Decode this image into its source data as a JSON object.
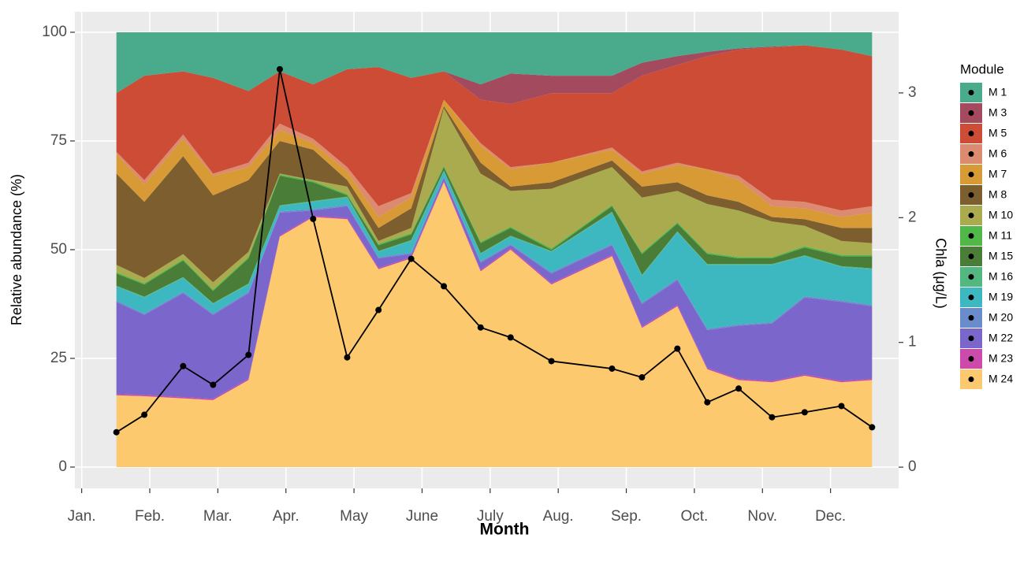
{
  "chart_data": {
    "type": "stacked_area",
    "x_label": "Month",
    "y_label": "Relative abundance (%)",
    "y2_label": "Chla (μg/L)",
    "legend_title": "Module",
    "x": [
      1.51,
      1.92,
      2.49,
      2.93,
      3.45,
      3.91,
      4.4,
      4.9,
      5.36,
      5.84,
      6.32,
      6.86,
      7.3,
      7.9,
      8.79,
      9.23,
      9.75,
      10.19,
      10.65,
      11.14,
      11.62,
      12.16,
      12.61
    ],
    "xlim": [
      0.9,
      13.0
    ],
    "xticks": [
      {
        "value": 1,
        "label": "Jan."
      },
      {
        "value": 2,
        "label": "Feb."
      },
      {
        "value": 3,
        "label": "Mar."
      },
      {
        "value": 4,
        "label": "Apr."
      },
      {
        "value": 5,
        "label": "May"
      },
      {
        "value": 6,
        "label": "June"
      },
      {
        "value": 7,
        "label": "July"
      },
      {
        "value": 8,
        "label": "Aug."
      },
      {
        "value": 9,
        "label": "Sep."
      },
      {
        "value": 10,
        "label": "Oct."
      },
      {
        "value": 11,
        "label": "Nov."
      },
      {
        "value": 12,
        "label": "Dec."
      }
    ],
    "ylim": [
      -4.9,
      104.7
    ],
    "yticks": [
      0,
      25,
      50,
      75,
      100
    ],
    "y2lim": [
      -0.17,
      3.65
    ],
    "y2ticks": [
      0,
      1,
      2,
      3
    ],
    "grid": true,
    "series": [
      {
        "name": "M 1",
        "color": "#4aab8c",
        "values": [
          14,
          10,
          9,
          10.5,
          13.5,
          9,
          12,
          8.5,
          8,
          10.5,
          9,
          12,
          9.5,
          10,
          10,
          7,
          5.5,
          4.5,
          3.7,
          3.3,
          3,
          4,
          5.5
        ]
      },
      {
        "name": "M 3",
        "color": "#a34a5e",
        "values": [
          0,
          0,
          0,
          0,
          0,
          0,
          0,
          0,
          0,
          0,
          0,
          3.5,
          7,
          4,
          4,
          3,
          2,
          1,
          0.3,
          0.2,
          0,
          0,
          0
        ]
      },
      {
        "name": "M 5",
        "color": "#cc4c35",
        "values": [
          13.5,
          24,
          14.5,
          22,
          16.5,
          12,
          12.5,
          22.5,
          32,
          26.5,
          6.5,
          10,
          14.5,
          16,
          12.5,
          22,
          22.5,
          26,
          29,
          35,
          36,
          37,
          34.5
        ]
      },
      {
        "name": "M 6",
        "color": "#dc8a70",
        "values": [
          0.5,
          1,
          1,
          0.5,
          1,
          1.5,
          1,
          1,
          2.5,
          1,
          0,
          0.5,
          0.5,
          0,
          0.5,
          0.5,
          0.5,
          0,
          1,
          1.5,
          1.5,
          1.5,
          1.5
        ]
      },
      {
        "name": "M 7",
        "color": "#d89a35",
        "values": [
          4.5,
          4,
          4,
          4.5,
          3,
          2.5,
          1.5,
          2,
          2.5,
          2.5,
          1.5,
          4,
          4,
          4.5,
          2.5,
          3,
          4,
          6,
          5,
          2.5,
          2.5,
          2.5,
          3.5
        ]
      },
      {
        "name": "M 8",
        "color": "#7d5e2e",
        "values": [
          21,
          17.5,
          22.5,
          20,
          16.5,
          7.5,
          7,
          1.5,
          3,
          4.5,
          0.5,
          2.5,
          1,
          1.5,
          1.5,
          2.5,
          2,
          2,
          2,
          1,
          1.5,
          3,
          3.5
        ]
      },
      {
        "name": "M 10",
        "color": "#aaaa4f",
        "values": [
          1.7,
          1.2,
          1.2,
          1.7,
          1.2,
          0.2,
          0.2,
          1.7,
          0.7,
          1.2,
          13.2,
          15.7,
          8.2,
          13.7,
          8.7,
          12.7,
          7.2,
          11.2,
          10.7,
          8.2,
          4.7,
          3.2,
          2.7
        ]
      },
      {
        "name": "M 11",
        "color": "#4fb848",
        "values": [
          0.3,
          0.3,
          0.3,
          0.3,
          0.3,
          0.3,
          0.3,
          0.3,
          0.3,
          0.3,
          0.3,
          0.3,
          0.3,
          0.3,
          0.3,
          0.3,
          0.3,
          0.3,
          0.3,
          0.3,
          0.3,
          0.3,
          0.3
        ]
      },
      {
        "name": "M 15",
        "color": "#4a7d38",
        "values": [
          2.8,
          2.8,
          3.8,
          2.8,
          5.8,
          6.8,
          4.3,
          0.3,
          1.3,
          1.3,
          0.8,
          2.3,
          1.8,
          0.3,
          1.3,
          4.8,
          1.8,
          2.3,
          1.3,
          1.3,
          1.8,
          2.3,
          2.8
        ]
      },
      {
        "name": "M 16",
        "color": "#52b87f",
        "values": [
          0.2,
          0.2,
          0.2,
          0.2,
          0.2,
          0.2,
          0.2,
          0.2,
          0.2,
          0.2,
          0.2,
          0.2,
          0.2,
          0.2,
          0.2,
          0.2,
          0.2,
          0.2,
          0.2,
          0.2,
          0.2,
          0.2,
          0.2
        ]
      },
      {
        "name": "M 19",
        "color": "#3db8c0",
        "values": [
          3.2,
          3.7,
          3.2,
          2.2,
          1.7,
          1.2,
          1.7,
          1.7,
          1.2,
          2.7,
          1.2,
          1.7,
          1.7,
          4.7,
          7.2,
          6.2,
          10.7,
          14.7,
          13.7,
          13.2,
          9.2,
          7.7,
          8.2
        ]
      },
      {
        "name": "M 20",
        "color": "#6a8ccc",
        "values": [
          0.3,
          0.3,
          0.3,
          0.3,
          0.3,
          0.3,
          0.3,
          0.3,
          0.3,
          0.3,
          0.3,
          0.3,
          0.3,
          0.3,
          0.3,
          0.3,
          0.3,
          0.3,
          0.3,
          0.3,
          0.3,
          0.3,
          0.3
        ]
      },
      {
        "name": "M 22",
        "color": "#7b66cc",
        "values": [
          21.2,
          18.4,
          23.9,
          19.3,
          19.7,
          5.2,
          1.2,
          2.7,
          2.2,
          0.7,
          0.7,
          1.7,
          0.7,
          2.2,
          2.2,
          5.2,
          5.7,
          8.7,
          12.2,
          13.2,
          17.7,
          18.2,
          16.7
        ]
      },
      {
        "name": "M 23",
        "color": "#cc4aaa",
        "values": [
          0.3,
          0.3,
          0.3,
          0.3,
          0.3,
          0.3,
          0.3,
          0.3,
          0.3,
          0.3,
          0.3,
          0.3,
          0.3,
          0.3,
          0.3,
          0.3,
          0.3,
          0.3,
          0.3,
          0.3,
          0.3,
          0.3,
          0.3
        ]
      },
      {
        "name": "M 24",
        "color": "#fdc96e",
        "values": [
          16.5,
          16.3,
          15.8,
          15.4,
          20,
          53,
          57.5,
          57,
          45.5,
          48,
          65.5,
          45,
          50,
          42,
          48.5,
          32,
          37,
          22.5,
          20,
          19.5,
          21,
          19.5,
          20
        ]
      }
    ],
    "chla": {
      "axis": "y2",
      "color": "#000000",
      "values": [
        0.28,
        0.42,
        0.81,
        0.66,
        0.9,
        3.19,
        1.99,
        0.88,
        1.26,
        1.67,
        1.45,
        1.12,
        1.04,
        0.85,
        0.79,
        0.72,
        0.95,
        0.52,
        0.63,
        0.4,
        0.44,
        0.49,
        0.32
      ]
    }
  }
}
